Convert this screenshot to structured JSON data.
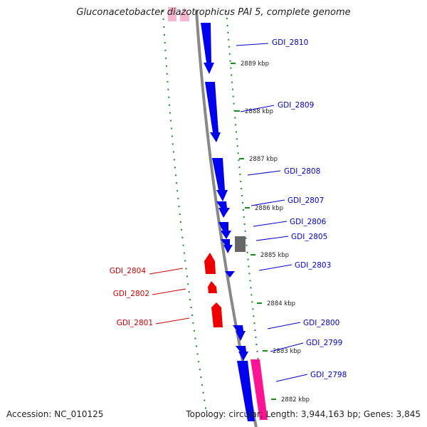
{
  "title": "Gluconacetobacter diazotrophicus PAI 5, complete genome",
  "footer": {
    "accession": "Accession: NC_010125",
    "summary": "Topology: circular; Length: 3,944,163 bp; Genes: 3,845"
  },
  "colors": {
    "forward_gene": "#0000ee",
    "reverse_gene": "#ee0000",
    "rna_gene": "#ff1493",
    "pseudo_gene": "#666666",
    "backbone": "#888888",
    "gc_dots": "#1a8a1a",
    "label_forward": "#0000cc",
    "label_reverse": "#cc0000"
  },
  "ticks": [
    {
      "label": "2889 kbp"
    },
    {
      "label": "2888 kbp"
    },
    {
      "label": "2887 kbp"
    },
    {
      "label": "2886 kbp"
    },
    {
      "label": "2885 kbp"
    },
    {
      "label": "2884 kbp"
    },
    {
      "label": "2883 kbp"
    },
    {
      "label": "2882 kbp"
    }
  ],
  "forward_genes": [
    {
      "name": "GDI_2810"
    },
    {
      "name": "GDI_2809"
    },
    {
      "name": "GDI_2808"
    },
    {
      "name": "GDI_2807"
    },
    {
      "name": "GDI_2806"
    },
    {
      "name": "GDI_2805"
    },
    {
      "name": "GDI_2803"
    },
    {
      "name": "GDI_2800"
    },
    {
      "name": "GDI_2799"
    },
    {
      "name": "GDI_2798"
    }
  ],
  "reverse_genes": [
    {
      "name": "GDI_2804"
    },
    {
      "name": "GDI_2802"
    },
    {
      "name": "GDI_2801"
    }
  ]
}
